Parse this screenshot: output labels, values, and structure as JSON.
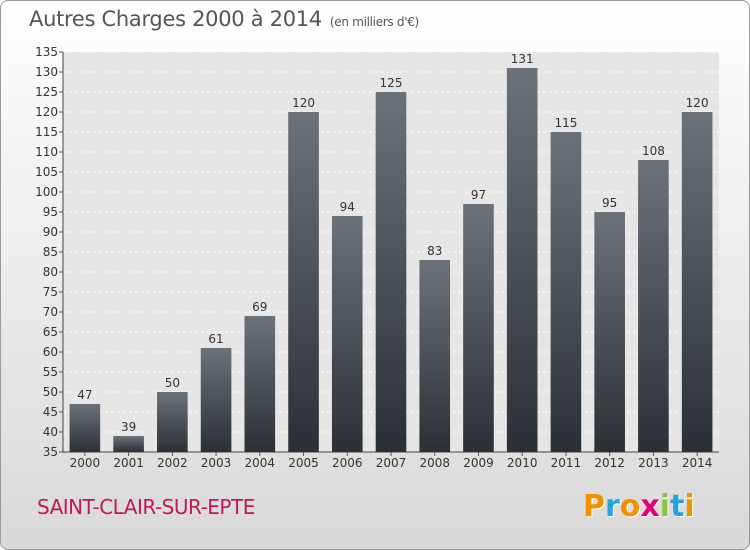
{
  "header": {
    "title": "Autres Charges 2000 à 2014",
    "unit_note": "(en milliers d'€)"
  },
  "footer": {
    "commune": "SAINT-CLAIR-SUR-EPTE",
    "brand": "Proxiti",
    "brand_letters": [
      {
        "char": "P",
        "color": "#f29100"
      },
      {
        "char": "r",
        "color": "#2aa3d9"
      },
      {
        "char": "o",
        "color": "#f29100"
      },
      {
        "char": "x",
        "color": "#e2007a"
      },
      {
        "char": "i",
        "color": "#8cc63f"
      },
      {
        "char": "t",
        "color": "#2aa3d9"
      },
      {
        "char": "i",
        "color": "#f29100"
      }
    ]
  },
  "chart_data": {
    "type": "bar",
    "categories": [
      "2000",
      "2001",
      "2002",
      "2003",
      "2004",
      "2005",
      "2006",
      "2007",
      "2008",
      "2009",
      "2010",
      "2011",
      "2012",
      "2013",
      "2014"
    ],
    "values": [
      47,
      39,
      50,
      61,
      69,
      120,
      94,
      125,
      83,
      97,
      131,
      115,
      95,
      108,
      120
    ],
    "ylim": [
      35,
      135
    ],
    "ytick_step": 5,
    "grid": true,
    "data_labels": true,
    "bar_color_top": "#6b727a",
    "bar_color_bottom": "#2b3036"
  }
}
